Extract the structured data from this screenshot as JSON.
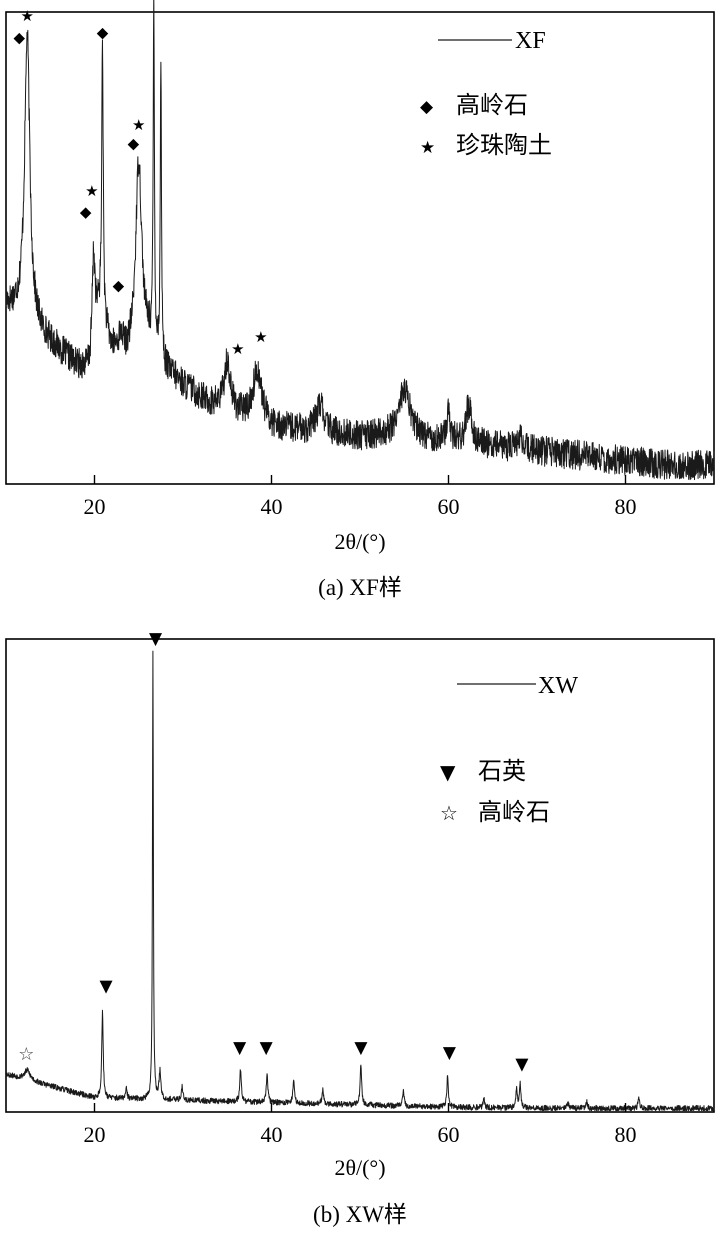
{
  "chart_data": [
    {
      "type": "line",
      "caption": "(a) XF样",
      "xlabel": "2θ/(°)",
      "xlim": [
        10,
        90
      ],
      "xticks": [
        20,
        40,
        60,
        80
      ],
      "ylim": [
        0,
        100
      ],
      "y_ticks_shown": false,
      "grid": false,
      "legend_position": "top-right",
      "series": [
        {
          "name": "XF",
          "color": "#1a1a1a"
        }
      ],
      "baseline": [
        [
          10,
          38
        ],
        [
          12,
          36
        ],
        [
          15,
          30
        ],
        [
          18,
          25
        ],
        [
          19.5,
          24
        ],
        [
          20.5,
          36
        ],
        [
          22,
          28
        ],
        [
          23.5,
          26
        ],
        [
          24.5,
          28
        ],
        [
          26,
          30
        ],
        [
          28,
          24
        ],
        [
          30,
          21
        ],
        [
          33,
          17
        ],
        [
          35,
          16
        ],
        [
          37,
          14
        ],
        [
          40,
          12
        ],
        [
          45,
          11
        ],
        [
          50,
          10
        ],
        [
          55,
          10
        ],
        [
          60,
          9
        ],
        [
          65,
          8
        ],
        [
          70,
          7
        ],
        [
          75,
          6
        ],
        [
          80,
          5
        ],
        [
          85,
          4
        ],
        [
          90,
          4
        ]
      ],
      "peaks": [
        {
          "x": 12.4,
          "height": 60,
          "width": 0.35
        },
        {
          "x": 19.9,
          "height": 20,
          "width": 0.2
        },
        {
          "x": 20.9,
          "height": 60,
          "width": 0.1
        },
        {
          "x": 23.0,
          "height": 4,
          "width": 0.4
        },
        {
          "x": 25.0,
          "height": 40,
          "width": 0.4
        },
        {
          "x": 26.7,
          "height": 73,
          "width": 0.08
        },
        {
          "x": 27.5,
          "height": 63,
          "width": 0.08
        },
        {
          "x": 35.0,
          "height": 10,
          "width": 0.4
        },
        {
          "x": 38.4,
          "height": 11,
          "width": 0.6
        },
        {
          "x": 45.5,
          "height": 6,
          "width": 0.5
        },
        {
          "x": 55.0,
          "height": 10,
          "width": 0.8
        },
        {
          "x": 60.0,
          "height": 7,
          "width": 0.2
        },
        {
          "x": 62.3,
          "height": 8,
          "width": 0.4
        },
        {
          "x": 68.0,
          "height": 2,
          "width": 0.5
        }
      ],
      "noise": 3.2,
      "legend": {
        "line_label": "XF",
        "phases": [
          {
            "symbol": "◆",
            "label": "高岭石"
          },
          {
            "symbol": "★",
            "label": "珍珠陶土"
          }
        ]
      },
      "markers": [
        {
          "symbol": "★",
          "x": 12.4,
          "y": 99
        },
        {
          "symbol": "◆",
          "x": 11.5,
          "y": 94.5
        },
        {
          "symbol": "◆",
          "x": 20.9,
          "y": 95.5
        },
        {
          "symbol": "★",
          "x": 25.0,
          "y": 76
        },
        {
          "symbol": "◆",
          "x": 24.4,
          "y": 72
        },
        {
          "symbol": "★",
          "x": 19.7,
          "y": 62
        },
        {
          "symbol": "◆",
          "x": 19.0,
          "y": 57.5
        },
        {
          "symbol": "◆",
          "x": 22.7,
          "y": 42
        },
        {
          "symbol": "★",
          "x": 36.2,
          "y": 28.5
        },
        {
          "symbol": "★",
          "x": 38.8,
          "y": 31
        }
      ]
    },
    {
      "type": "line",
      "caption": "(b) XW样",
      "xlabel": "2θ/(°)",
      "xlim": [
        10,
        90
      ],
      "xticks": [
        20,
        40,
        60,
        80
      ],
      "ylim": [
        0,
        100
      ],
      "y_ticks_shown": false,
      "grid": false,
      "legend_position": "top-right",
      "series": [
        {
          "name": "XW",
          "color": "#1a1a1a"
        }
      ],
      "baseline": [
        [
          10,
          8
        ],
        [
          14,
          6
        ],
        [
          18,
          4
        ],
        [
          20,
          3
        ],
        [
          30,
          2.5
        ],
        [
          40,
          2
        ],
        [
          50,
          1.5
        ],
        [
          60,
          1
        ],
        [
          70,
          0.8
        ],
        [
          80,
          0.8
        ],
        [
          90,
          0.8
        ]
      ],
      "peaks": [
        {
          "x": 12.4,
          "height": 2,
          "width": 0.4
        },
        {
          "x": 20.9,
          "height": 18,
          "width": 0.1
        },
        {
          "x": 23.6,
          "height": 2,
          "width": 0.1
        },
        {
          "x": 26.6,
          "height": 95,
          "width": 0.06
        },
        {
          "x": 27.4,
          "height": 6,
          "width": 0.12
        },
        {
          "x": 29.9,
          "height": 3,
          "width": 0.1
        },
        {
          "x": 36.5,
          "height": 7,
          "width": 0.1
        },
        {
          "x": 39.5,
          "height": 6,
          "width": 0.1
        },
        {
          "x": 42.5,
          "height": 5,
          "width": 0.1
        },
        {
          "x": 45.8,
          "height": 3,
          "width": 0.1
        },
        {
          "x": 50.1,
          "height": 9,
          "width": 0.1
        },
        {
          "x": 54.9,
          "height": 3,
          "width": 0.1
        },
        {
          "x": 59.9,
          "height": 7,
          "width": 0.1
        },
        {
          "x": 64.0,
          "height": 2,
          "width": 0.1
        },
        {
          "x": 67.7,
          "height": 4,
          "width": 0.1
        },
        {
          "x": 68.1,
          "height": 5,
          "width": 0.1
        },
        {
          "x": 73.5,
          "height": 1.5,
          "width": 0.1
        },
        {
          "x": 75.6,
          "height": 1.5,
          "width": 0.1
        },
        {
          "x": 81.5,
          "height": 2,
          "width": 0.1
        }
      ],
      "noise": 0.6,
      "legend": {
        "line_label": "XW",
        "phases": [
          {
            "symbol": "▼",
            "label": "石英"
          },
          {
            "symbol": "☆",
            "label": "高岭石"
          }
        ]
      },
      "markers": [
        {
          "symbol": "☆",
          "x": 12.3,
          "y": 12
        },
        {
          "symbol": "▼",
          "x": 21.3,
          "y": 26.5
        },
        {
          "symbol": "▼",
          "x": 26.9,
          "y": 100
        },
        {
          "symbol": "▼",
          "x": 36.4,
          "y": 13.5
        },
        {
          "symbol": "▼",
          "x": 39.4,
          "y": 13.5
        },
        {
          "symbol": "▼",
          "x": 50.1,
          "y": 13.5
        },
        {
          "symbol": "▼",
          "x": 60.1,
          "y": 12.5
        },
        {
          "symbol": "▼",
          "x": 68.3,
          "y": 10
        }
      ]
    }
  ]
}
